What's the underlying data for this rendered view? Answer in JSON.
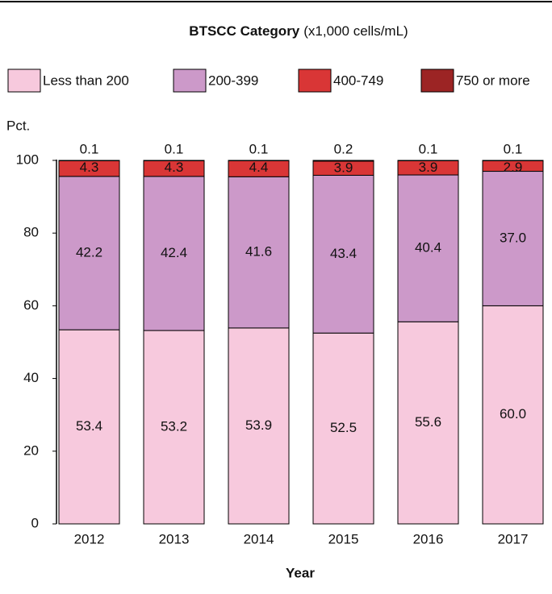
{
  "chart_data": {
    "type": "stacked_bar",
    "title": "BTSCC Category",
    "title_units": "(x1,000 cells/mL)",
    "y_label": "Pct.",
    "x_label": "Year",
    "categories": [
      "2012",
      "2013",
      "2014",
      "2015",
      "2016",
      "2017"
    ],
    "series": [
      {
        "name": "Less than 200",
        "color": "#f7c9dd",
        "values": [
          53.4,
          53.2,
          53.9,
          52.5,
          55.6,
          60
        ],
        "value_labels": [
          "53.4",
          "53.2",
          "53.9",
          "52.5",
          "55.6",
          "60.0"
        ]
      },
      {
        "name": "200-399",
        "color": "#cc99c9",
        "values": [
          42.2,
          42.4,
          41.6,
          43.4,
          40.4,
          37
        ],
        "value_labels": [
          "42.2",
          "42.4",
          "41.6",
          "43.4",
          "40.4",
          "37.0"
        ]
      },
      {
        "name": "400-749",
        "color": "#d93636",
        "values": [
          4.3,
          4.3,
          4.4,
          3.9,
          3.9,
          2.9
        ]
      },
      {
        "name": "750 or more",
        "color": "#9c2424",
        "values": [
          0.1,
          0.1,
          0.1,
          0.2,
          0.1,
          0.1
        ]
      }
    ],
    "ylim": [
      0,
      100
    ],
    "yticks": [
      0,
      20,
      40,
      60,
      80,
      100
    ]
  }
}
